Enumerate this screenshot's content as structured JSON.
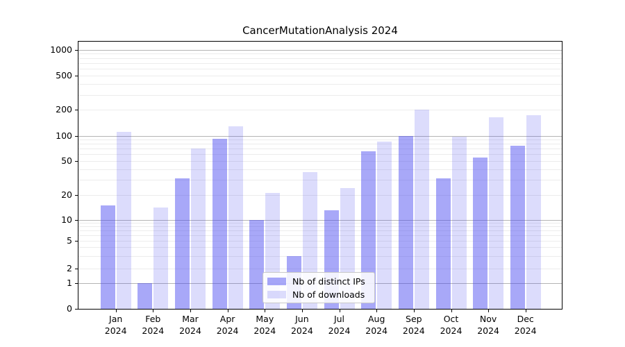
{
  "title": "CancerMutationAnalysis 2024",
  "chart_data": {
    "type": "bar",
    "title": "CancerMutationAnalysis 2024",
    "categories": [
      "Jan 2024",
      "Feb 2024",
      "Mar 2024",
      "Apr 2024",
      "May 2024",
      "Jun 2024",
      "Jul 2024",
      "Aug 2024",
      "Sep 2024",
      "Oct 2024",
      "Nov 2024",
      "Dec 2024"
    ],
    "x_months": [
      "Jan",
      "Feb",
      "Mar",
      "Apr",
      "May",
      "Jun",
      "Jul",
      "Aug",
      "Sep",
      "Oct",
      "Nov",
      "Dec"
    ],
    "x_year": "2024",
    "series": [
      {
        "name": "Nb of distinct IPs",
        "color": "#4646F078",
        "values": [
          15,
          1,
          31,
          93,
          10,
          3,
          13,
          65,
          100,
          31,
          55,
          76
        ]
      },
      {
        "name": "Nb of downloads",
        "color": "#4646F030",
        "values": [
          112,
          14,
          70,
          130,
          21,
          37,
          24,
          85,
          202,
          97,
          165,
          175
        ]
      }
    ],
    "y_scale": "symlog",
    "y_ticks": [
      0,
      1,
      2,
      5,
      10,
      20,
      50,
      100,
      200,
      500,
      1000
    ],
    "y_major_gridlines": [
      1,
      10,
      100,
      1000
    ],
    "y_minor_gridlines": [
      2,
      3,
      4,
      5,
      6,
      7,
      8,
      9,
      20,
      30,
      40,
      50,
      60,
      70,
      80,
      90,
      200,
      300,
      400,
      500,
      600,
      700,
      800,
      900
    ],
    "ylim": [
      0,
      1200
    ],
    "grid": true,
    "legend_position": "lower center"
  },
  "colors": {
    "bar_distinct_ips": "#4646F078",
    "bar_downloads": "#4646F030",
    "major_grid": "#b4b4b4",
    "minor_grid": "#ececec",
    "axis": "#000000",
    "legend_border": "#c8c8c8",
    "legend_bg": "#ffffffd9"
  }
}
